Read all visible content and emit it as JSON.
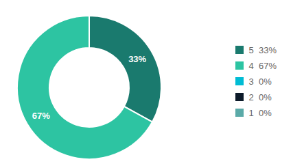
{
  "chart_data": {
    "type": "pie",
    "categories": [
      "5  33%",
      "4  67%",
      "3  0%",
      "2  0%",
      "1  0%"
    ],
    "values": [
      33,
      67,
      0,
      0,
      0
    ],
    "value_labels": [
      "33%",
      "67%",
      null,
      null,
      null
    ],
    "colors": [
      "#1a7a6e",
      "#2dc4a2",
      "#00bcd4",
      "#0d1b2a",
      "#5baaa8"
    ],
    "data_labels": true,
    "legend": "right"
  }
}
